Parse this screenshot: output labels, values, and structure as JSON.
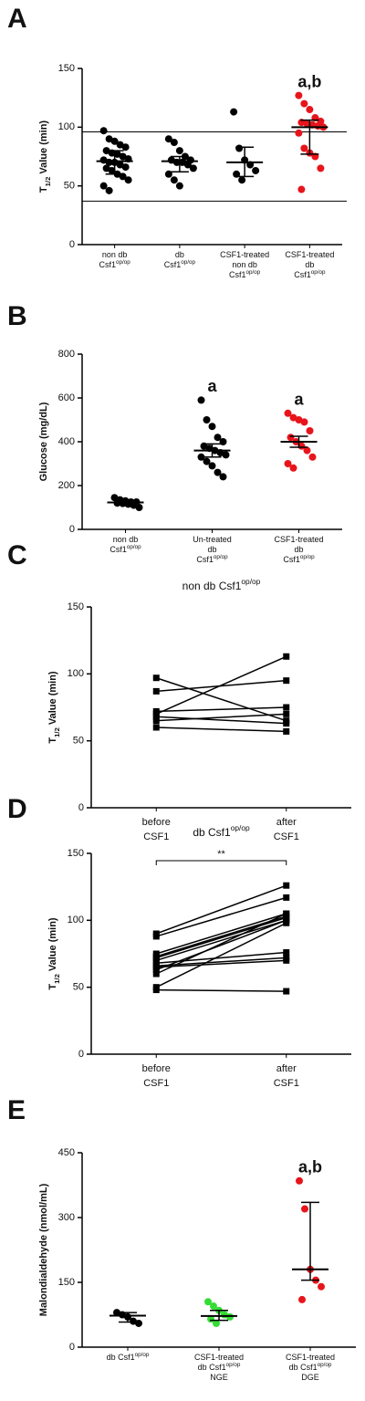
{
  "chart_data": [
    {
      "type": "scatter",
      "panel": "A",
      "ylabel": [
        "T",
        "1/2",
        " Value (min)"
      ],
      "categories": [
        [
          [
            "non db"
          ],
          [
            "Csf1",
            "op/op"
          ]
        ],
        [
          [
            "db"
          ],
          [
            "Csf1",
            "op/op"
          ]
        ],
        [
          [
            "CSF1-treated"
          ],
          [
            "non db"
          ],
          [
            "Csf1",
            "op/op"
          ]
        ],
        [
          [
            "CSF1-treated"
          ],
          [
            "db"
          ],
          [
            "Csf1",
            "op/op"
          ]
        ]
      ],
      "colors": [
        "#000000",
        "#000000",
        "#000000",
        "#e8141b"
      ],
      "values": [
        [
          97,
          90,
          88,
          85,
          83,
          80,
          78,
          77,
          75,
          73,
          72,
          70,
          70,
          68,
          66,
          65,
          63,
          60,
          58,
          55,
          50,
          46
        ],
        [
          90,
          87,
          80,
          75,
          72,
          72,
          70,
          70,
          68,
          65,
          60,
          55,
          50
        ],
        [
          113,
          82,
          72,
          68,
          63,
          60,
          55
        ],
        [
          127,
          120,
          115,
          108,
          105,
          104,
          103,
          102,
          101,
          100,
          95,
          82,
          78,
          75,
          65,
          47
        ]
      ],
      "summary": [
        {
          "center": 71,
          "low": 60,
          "high": 80
        },
        {
          "center": 71,
          "low": 62,
          "high": 75
        },
        {
          "center": 70,
          "low": 58,
          "high": 83
        },
        {
          "center": 100,
          "low": 77,
          "high": 106
        }
      ],
      "group_labels": [
        null,
        null,
        null,
        "a,b"
      ],
      "hlines": [
        96,
        37
      ],
      "ylim": [
        0,
        150
      ],
      "yticks": [
        0,
        50,
        100,
        150
      ]
    },
    {
      "type": "scatter",
      "panel": "B",
      "ylabel": "Glucose (mg/dL)",
      "categories": [
        [
          [
            "non db"
          ],
          [
            "Csf1",
            "op/op"
          ]
        ],
        [
          [
            "Un-treated"
          ],
          [
            "db"
          ],
          [
            "Csf1",
            "op/op"
          ]
        ],
        [
          [
            "CSF1-treated"
          ],
          [
            "db"
          ],
          [
            "Csf1",
            "op/op"
          ]
        ]
      ],
      "colors": [
        "#000000",
        "#000000",
        "#e8141b"
      ],
      "values": [
        [
          145,
          135,
          130,
          125,
          125,
          120,
          118,
          115,
          110,
          100
        ],
        [
          590,
          500,
          470,
          420,
          400,
          380,
          370,
          360,
          350,
          340,
          330,
          310,
          290,
          260,
          240
        ],
        [
          530,
          510,
          500,
          490,
          450,
          420,
          400,
          380,
          360,
          330,
          300,
          280
        ]
      ],
      "summary": [
        {
          "center": 123,
          "low": 115,
          "high": 130
        },
        {
          "center": 360,
          "low": 330,
          "high": 390
        },
        {
          "center": 400,
          "low": 375,
          "high": 425
        }
      ],
      "group_labels": [
        null,
        "a",
        "a"
      ],
      "ylim": [
        0,
        800
      ],
      "yticks": [
        0,
        200,
        400,
        600,
        800
      ]
    },
    {
      "type": "line",
      "panel": "C",
      "title": [
        "non db Csf1",
        "op/op"
      ],
      "ylabel": [
        "T",
        "1/2",
        " Value (min)"
      ],
      "categories": [
        [
          [
            "before"
          ],
          [
            "CSF1"
          ]
        ],
        [
          [
            "after"
          ],
          [
            "CSF1"
          ]
        ]
      ],
      "color": "#000000",
      "marker": "square",
      "series": [
        {
          "values": [
            97,
            65
          ]
        },
        {
          "values": [
            87,
            95
          ]
        },
        {
          "values": [
            72,
            75
          ]
        },
        {
          "values": [
            70,
            113
          ]
        },
        {
          "values": [
            68,
            63
          ]
        },
        {
          "values": [
            65,
            70
          ]
        },
        {
          "values": [
            60,
            57
          ]
        }
      ],
      "ylim": [
        0,
        150
      ],
      "yticks": [
        0,
        50,
        100,
        150
      ]
    },
    {
      "type": "line",
      "panel": "D",
      "title": [
        "db Csf1",
        "op/op"
      ],
      "ylabel": [
        "T",
        "1/2",
        " Value (min)"
      ],
      "categories": [
        [
          [
            "before"
          ],
          [
            "CSF1"
          ]
        ],
        [
          [
            "after"
          ],
          [
            "CSF1"
          ]
        ]
      ],
      "color": "#000000",
      "marker": "square",
      "significance": "**",
      "series": [
        {
          "values": [
            90,
            126
          ]
        },
        {
          "values": [
            88,
            117
          ]
        },
        {
          "values": [
            75,
            105
          ]
        },
        {
          "values": [
            73,
            103
          ]
        },
        {
          "values": [
            72,
            102
          ]
        },
        {
          "values": [
            70,
            100
          ]
        },
        {
          "values": [
            68,
            76
          ]
        },
        {
          "values": [
            66,
            72
          ]
        },
        {
          "values": [
            65,
            70
          ]
        },
        {
          "values": [
            63,
            100
          ]
        },
        {
          "values": [
            60,
            105
          ]
        },
        {
          "values": [
            50,
            98
          ]
        },
        {
          "values": [
            48,
            47
          ]
        }
      ],
      "ylim": [
        0,
        150
      ],
      "yticks": [
        0,
        50,
        100,
        150
      ]
    },
    {
      "type": "scatter",
      "panel": "E",
      "ylabel": "Malondialdehyde (nmol/mL)",
      "categories": [
        [
          [
            "db Csf1",
            "op/op"
          ]
        ],
        [
          [
            "CSF1-treated"
          ],
          [
            "db Csf1",
            "op/op"
          ],
          [
            "NGE"
          ]
        ],
        [
          [
            "CSF1-treated"
          ],
          [
            "db Csf1",
            "op/op"
          ],
          [
            "DGE"
          ]
        ]
      ],
      "colors": [
        "#000000",
        "#33dd33",
        "#e8141b"
      ],
      "values": [
        [
          80,
          75,
          70,
          60,
          55
        ],
        [
          105,
          95,
          85,
          75,
          70,
          65,
          55
        ],
        [
          385,
          320,
          180,
          155,
          140,
          110
        ]
      ],
      "summary": [
        {
          "center": 73,
          "low": 58,
          "high": 80
        },
        {
          "center": 72,
          "low": 62,
          "high": 85
        },
        {
          "center": 180,
          "low": 155,
          "high": 335
        }
      ],
      "group_labels": [
        null,
        null,
        "a,b"
      ],
      "ylim": [
        0,
        450
      ],
      "yticks": [
        0,
        150,
        300,
        450
      ]
    }
  ]
}
